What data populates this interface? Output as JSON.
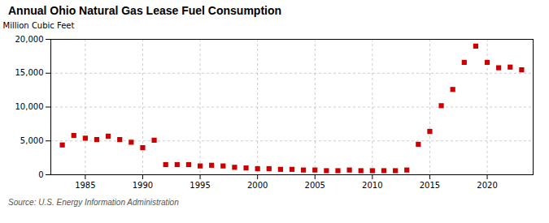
{
  "chart_data": {
    "type": "scatter",
    "title": "Annual Ohio Natural Gas Lease Fuel Consumption",
    "ylabel": "Million Cubic Feet",
    "source": "Source: U.S. Energy Information Administration",
    "x": [
      1983,
      1984,
      1985,
      1986,
      1987,
      1988,
      1989,
      1990,
      1991,
      1992,
      1993,
      1994,
      1995,
      1996,
      1997,
      1998,
      1999,
      2000,
      2001,
      2002,
      2003,
      2004,
      2005,
      2006,
      2007,
      2008,
      2009,
      2010,
      2011,
      2012,
      2013,
      2014,
      2015,
      2016,
      2017,
      2018,
      2019,
      2020,
      2021,
      2022,
      2023
    ],
    "values": [
      4400,
      5800,
      5400,
      5200,
      5700,
      5200,
      4800,
      4000,
      5100,
      1500,
      1500,
      1500,
      1300,
      1400,
      1300,
      1100,
      1000,
      900,
      900,
      800,
      800,
      700,
      700,
      600,
      600,
      700,
      600,
      600,
      600,
      600,
      700,
      4500,
      6400,
      10200,
      12600,
      16600,
      19000,
      16600,
      15800,
      15900,
      15500
    ],
    "color": "#cc0000",
    "marker": "square",
    "xlim": [
      1982,
      2024
    ],
    "xticks": [
      1985,
      1990,
      1995,
      2000,
      2005,
      2010,
      2015,
      2020
    ],
    "ylim": [
      0,
      20000
    ],
    "yticks": [
      0,
      {
        "value": 5000,
        "label": "5,000"
      },
      {
        "value": 10000,
        "label": "10,000"
      },
      {
        "value": 15000,
        "label": "15,000"
      },
      {
        "value": 20000,
        "label": "20,000"
      }
    ],
    "grid": true
  }
}
